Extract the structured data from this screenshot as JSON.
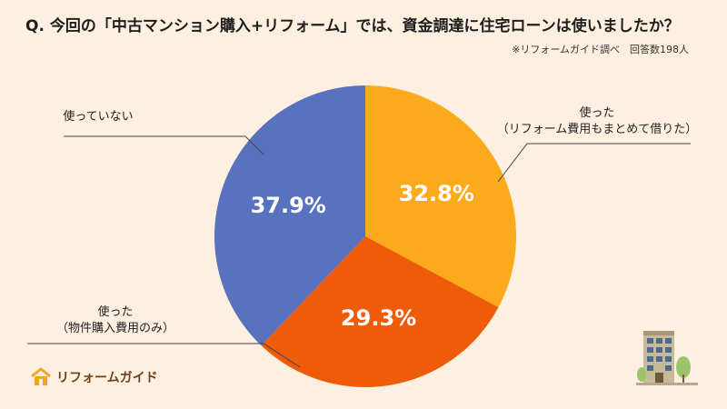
{
  "header": {
    "title": "Q. 今回の「中古マンション購入+リフォーム」では、資金調達に住宅ローンは使いましたか？",
    "source": "※リフォームガイド調べ　回答数198人"
  },
  "logo": {
    "text": "リフォームガイド"
  },
  "colors": {
    "background": "#fdf0e0",
    "accent": "#fbaa1b"
  },
  "chart_data": {
    "type": "pie",
    "title": "Q. 今回の「中古マンション購入+リフォーム」では、資金調達に住宅ローンは使いましたか？",
    "start": "top",
    "direction": "clockwise",
    "slices": [
      {
        "label": "使った（リフォーム費用もまとめて借りた）",
        "label_lines": [
          "使った",
          "（リフォーム費用もまとめて借りた）"
        ],
        "value": 32.8,
        "display": "32.8%",
        "color": "#fbaa1b"
      },
      {
        "label": "使った（物件購入費用のみ）",
        "label_lines": [
          "使った",
          "（物件購入費用のみ）"
        ],
        "value": 29.3,
        "display": "29.3%",
        "color": "#ee5c0a"
      },
      {
        "label": "使っていない",
        "label_lines": [
          "使っていない"
        ],
        "value": 37.9,
        "display": "37.9%",
        "color": "#5872c0"
      }
    ]
  }
}
